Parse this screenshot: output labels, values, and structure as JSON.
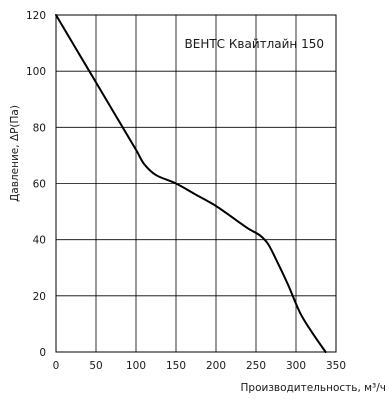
{
  "chart_data": {
    "type": "line",
    "title": "ВЕНТС Квайтлайн 150",
    "xlabel": "Производительность, м³/ч",
    "ylabel": "Давление, ΔР(Па)",
    "xlim": [
      0,
      350
    ],
    "ylim": [
      0,
      120
    ],
    "x_ticks": [
      0,
      50,
      100,
      150,
      200,
      250,
      300,
      350
    ],
    "y_ticks": [
      0,
      20,
      40,
      60,
      80,
      100,
      120
    ],
    "grid": true,
    "legend": "none",
    "series": [
      {
        "color": "#000000",
        "x": [
          0,
          25,
          50,
          75,
          100,
          110,
          125,
          150,
          175,
          200,
          225,
          240,
          255,
          265,
          275,
          290,
          305,
          320,
          337
        ],
        "y": [
          120,
          108,
          96,
          84,
          72,
          67,
          63,
          60,
          56,
          52,
          47,
          44,
          41.5,
          38.5,
          33,
          24,
          14,
          7,
          0
        ]
      }
    ]
  }
}
